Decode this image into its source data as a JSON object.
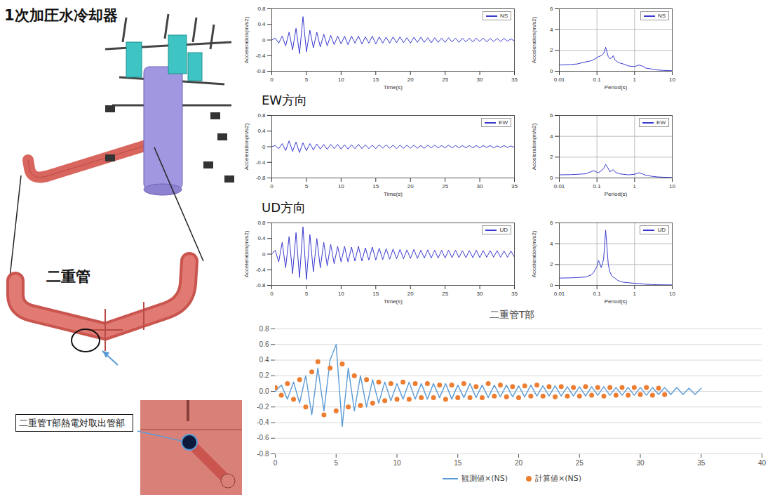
{
  "diagram": {
    "labels": {
      "cooler": "1次加圧水冷却器",
      "pipe": "二重管",
      "callout": "二重管T部熱電対取出管部"
    }
  },
  "chart_data": [
    {
      "type": "line",
      "x_label": "Time(s)",
      "y_label": "Acceleration(m/s2)",
      "legend": "top-right",
      "x": [
        0,
        0.5,
        1,
        1.5,
        2,
        2.5,
        3,
        3.5,
        4,
        4.5,
        5,
        5.5,
        6,
        6.5,
        7,
        7.5,
        8,
        8.5,
        9,
        9.5,
        10,
        10.5,
        11,
        11.5,
        12,
        12.5,
        13,
        13.5,
        14,
        14.5,
        15,
        15.5,
        16,
        16.5,
        17,
        17.5,
        18,
        18.5,
        19,
        19.5,
        20,
        20.5,
        21,
        21.5,
        22,
        22.5,
        23,
        23.5,
        24,
        24.5,
        25,
        25.5,
        26,
        26.5,
        27,
        27.5,
        28,
        28.5,
        29,
        29.5,
        30,
        30.5,
        31,
        31.5,
        32,
        32.5,
        33,
        33.5,
        34,
        34.5,
        35
      ],
      "series": [
        {
          "name": "NS",
          "color": "#3a3ad0",
          "values": [
            0,
            0.05,
            -0.08,
            0.1,
            -0.15,
            0.2,
            -0.25,
            0.3,
            -0.35,
            0.6,
            -0.3,
            0.25,
            -0.2,
            0.2,
            -0.18,
            0.15,
            -0.15,
            0.12,
            -0.12,
            0.1,
            -0.1,
            0.1,
            -0.12,
            0.1,
            -0.08,
            0.1,
            -0.1,
            0.08,
            -0.08,
            0.1,
            -0.1,
            0.08,
            -0.08,
            0.07,
            -0.08,
            0.08,
            -0.07,
            0.08,
            -0.07,
            0.06,
            -0.08,
            0.07,
            -0.06,
            0.07,
            -0.06,
            0.06,
            -0.07,
            0.06,
            -0.06,
            0.05,
            -0.06,
            0.06,
            -0.05,
            0.05,
            -0.06,
            0.05,
            -0.05,
            0.05,
            -0.05,
            0.05,
            -0.04,
            0.05,
            -0.05,
            0.04,
            -0.04,
            0.04,
            -0.04,
            0.04,
            -0.03,
            0.03,
            -0.03
          ]
        }
      ],
      "xlim": [
        0,
        35
      ],
      "xticks": [
        0,
        5,
        10,
        15,
        20,
        25,
        30,
        35
      ],
      "ylim": [
        -0.8,
        0.8
      ],
      "yticks": [
        -0.8,
        -0.4,
        0,
        0.4,
        0.8
      ]
    },
    {
      "type": "line",
      "log": "x",
      "grid": true,
      "x_label": "Period(s)",
      "y_label": "Acceleration(m/s2)",
      "legend": "top-right",
      "x": [
        0.01,
        0.02,
        0.03,
        0.05,
        0.07,
        0.08,
        0.1,
        0.11,
        0.13,
        0.15,
        0.17,
        0.2,
        0.22,
        0.25,
        0.27,
        0.3,
        0.35,
        0.4,
        0.5,
        0.7,
        1,
        1.3,
        1.6,
        2,
        3,
        4,
        6,
        10
      ],
      "series": [
        {
          "name": "NS",
          "color": "#3a3ad0",
          "values": [
            0.6,
            0.65,
            0.7,
            0.9,
            1.0,
            1.1,
            1.3,
            1.4,
            1.5,
            1.7,
            2.3,
            1.4,
            1.2,
            1.3,
            1.5,
            1.1,
            0.9,
            0.8,
            0.7,
            0.5,
            0.45,
            0.6,
            0.5,
            0.3,
            0.2,
            0.12,
            0.08,
            0.05
          ]
        }
      ],
      "xlim": [
        0.01,
        10
      ],
      "xticks": [
        0.01,
        0.1,
        1,
        10
      ],
      "ylim": [
        0,
        6
      ],
      "yticks": [
        0,
        2,
        4,
        6
      ]
    },
    {
      "type": "line",
      "title": "EW方向",
      "x_label": "Time(s)",
      "y_label": "Acceleration(m/s2)",
      "legend": "top-right",
      "x": [
        0,
        0.5,
        1,
        1.5,
        2,
        2.5,
        3,
        3.5,
        4,
        4.5,
        5,
        5.5,
        6,
        6.5,
        7,
        7.5,
        8,
        8.5,
        9,
        9.5,
        10,
        10.5,
        11,
        11.5,
        12,
        12.5,
        13,
        13.5,
        14,
        14.5,
        15,
        15.5,
        16,
        16.5,
        17,
        17.5,
        18,
        18.5,
        19,
        19.5,
        20,
        20.5,
        21,
        21.5,
        22,
        22.5,
        23,
        23.5,
        24,
        24.5,
        25,
        25.5,
        26,
        26.5,
        27,
        27.5,
        28,
        28.5,
        29,
        29.5,
        30,
        30.5,
        31,
        31.5,
        32,
        32.5,
        33,
        33.5,
        34,
        34.5,
        35
      ],
      "series": [
        {
          "name": "EW",
          "color": "#3a3ad0",
          "values": [
            0,
            0.03,
            -0.05,
            0.08,
            -0.1,
            0.15,
            -0.12,
            0.12,
            -0.15,
            0.1,
            -0.1,
            0.08,
            -0.08,
            0.07,
            -0.06,
            0.06,
            -0.07,
            0.06,
            -0.05,
            0.06,
            -0.06,
            0.05,
            -0.06,
            0.05,
            -0.05,
            0.06,
            -0.05,
            0.05,
            -0.05,
            0.04,
            -0.05,
            0.05,
            -0.04,
            0.05,
            -0.04,
            0.04,
            -0.05,
            0.04,
            -0.04,
            0.04,
            -0.04,
            0.04,
            -0.04,
            0.03,
            -0.04,
            0.04,
            -0.03,
            0.04,
            -0.03,
            0.03,
            -0.03,
            0.04,
            -0.03,
            0.03,
            -0.03,
            0.03,
            -0.03,
            0.03,
            -0.03,
            0.03,
            -0.03,
            0.03,
            -0.02,
            0.03,
            -0.03,
            0.02,
            -0.02,
            0.03,
            -0.02,
            0.02,
            -0.02
          ]
        }
      ],
      "xlim": [
        0,
        35
      ],
      "xticks": [
        0,
        5,
        10,
        15,
        20,
        25,
        30,
        35
      ],
      "ylim": [
        -0.8,
        0.8
      ],
      "yticks": [
        -0.8,
        -0.4,
        0,
        0.4,
        0.8
      ]
    },
    {
      "type": "line",
      "log": "x",
      "grid": true,
      "x_label": "Period(s)",
      "y_label": "Acceleration(m/s2)",
      "legend": "top-right",
      "x": [
        0.01,
        0.02,
        0.03,
        0.05,
        0.07,
        0.08,
        0.1,
        0.11,
        0.13,
        0.15,
        0.17,
        0.2,
        0.22,
        0.25,
        0.27,
        0.3,
        0.35,
        0.4,
        0.5,
        0.7,
        1,
        1.3,
        1.6,
        2,
        3,
        4,
        6,
        10
      ],
      "series": [
        {
          "name": "EW",
          "color": "#3a3ad0",
          "values": [
            0.3,
            0.32,
            0.35,
            0.4,
            0.6,
            0.7,
            0.55,
            0.5,
            0.7,
            0.9,
            1.3,
            0.9,
            0.6,
            0.7,
            0.8,
            0.6,
            0.45,
            0.4,
            0.35,
            0.3,
            0.35,
            0.5,
            0.4,
            0.25,
            0.15,
            0.1,
            0.07,
            0.04
          ]
        }
      ],
      "xlim": [
        0.01,
        10
      ],
      "xticks": [
        0.01,
        0.1,
        1,
        10
      ],
      "ylim": [
        0,
        6
      ],
      "yticks": [
        0,
        2,
        4,
        6
      ]
    },
    {
      "type": "line",
      "title": "UD方向",
      "x_label": "Time(s)",
      "y_label": "Acceleration(m/s2)",
      "legend": "top-right",
      "x": [
        0,
        0.5,
        1,
        1.5,
        2,
        2.5,
        3,
        3.5,
        4,
        4.5,
        5,
        5.5,
        6,
        6.5,
        7,
        7.5,
        8,
        8.5,
        9,
        9.5,
        10,
        10.5,
        11,
        11.5,
        12,
        12.5,
        13,
        13.5,
        14,
        14.5,
        15,
        15.5,
        16,
        16.5,
        17,
        17.5,
        18,
        18.5,
        19,
        19.5,
        20,
        20.5,
        21,
        21.5,
        22,
        22.5,
        23,
        23.5,
        24,
        24.5,
        25,
        25.5,
        26,
        26.5,
        27,
        27.5,
        28,
        28.5,
        29,
        29.5,
        30,
        30.5,
        31,
        31.5,
        32,
        32.5,
        33,
        33.5,
        34,
        34.5,
        35
      ],
      "series": [
        {
          "name": "UD",
          "color": "#3a3ad0",
          "values": [
            0,
            0.1,
            -0.2,
            0.3,
            -0.35,
            0.45,
            -0.5,
            0.55,
            -0.6,
            0.7,
            -0.65,
            0.5,
            -0.45,
            0.4,
            -0.35,
            0.3,
            -0.3,
            0.25,
            -0.25,
            0.2,
            -0.2,
            0.2,
            -0.2,
            0.18,
            -0.18,
            0.2,
            -0.18,
            0.16,
            -0.15,
            0.18,
            -0.15,
            0.15,
            -0.14,
            0.14,
            -0.13,
            0.13,
            -0.12,
            0.12,
            -0.12,
            0.11,
            -0.11,
            0.12,
            -0.11,
            0.1,
            -0.1,
            0.11,
            -0.1,
            0.1,
            -0.1,
            0.1,
            -0.1,
            0.1,
            -0.09,
            0.1,
            -0.09,
            0.09,
            -0.09,
            0.09,
            -0.09,
            0.1,
            -0.09,
            0.09,
            -0.08,
            0.09,
            -0.08,
            0.09,
            -0.08,
            0.08,
            -0.08,
            0.08,
            -0.08
          ]
        }
      ],
      "xlim": [
        0,
        35
      ],
      "xticks": [
        0,
        5,
        10,
        15,
        20,
        25,
        30,
        35
      ],
      "ylim": [
        -0.8,
        0.8
      ],
      "yticks": [
        -0.8,
        -0.4,
        0,
        0.4,
        0.8
      ]
    },
    {
      "type": "line",
      "log": "x",
      "grid": true,
      "x_label": "Period(s)",
      "y_label": "Acceleration(m/s2)",
      "legend": "top-right",
      "x": [
        0.01,
        0.02,
        0.03,
        0.05,
        0.07,
        0.08,
        0.1,
        0.11,
        0.13,
        0.15,
        0.17,
        0.2,
        0.22,
        0.25,
        0.27,
        0.3,
        0.35,
        0.4,
        0.5,
        0.7,
        1,
        1.3,
        1.6,
        2,
        3,
        4,
        6,
        10
      ],
      "series": [
        {
          "name": "UD",
          "color": "#3a3ad0",
          "values": [
            0.7,
            0.72,
            0.75,
            0.8,
            1.0,
            1.2,
            1.8,
            2.4,
            1.7,
            2.5,
            5.3,
            2.0,
            1.3,
            0.9,
            0.8,
            0.7,
            0.5,
            0.4,
            0.3,
            0.25,
            0.2,
            0.18,
            0.15,
            0.1,
            0.08,
            0.06,
            0.05,
            0.04
          ]
        }
      ],
      "xlim": [
        0.01,
        10
      ],
      "xticks": [
        0.01,
        0.1,
        1,
        10
      ],
      "ylim": [
        0,
        6
      ],
      "yticks": [
        0,
        2,
        4,
        6
      ]
    },
    {
      "type": "line",
      "title": "二重管T部",
      "grid": true,
      "legend": "bottom",
      "series": [
        {
          "name": "観測値×(NS)",
          "type": "line",
          "color": "#5b9bd5",
          "x": [
            0,
            0.5,
            1,
            1.5,
            2,
            2.5,
            3,
            3.5,
            4,
            4.5,
            5,
            5.5,
            6,
            6.5,
            7,
            7.5,
            8,
            8.5,
            9,
            9.5,
            10,
            10.5,
            11,
            11.5,
            12,
            12.5,
            13,
            13.5,
            14,
            14.5,
            15,
            15.5,
            16,
            16.5,
            17,
            17.5,
            18,
            18.5,
            19,
            19.5,
            20,
            20.5,
            21,
            21.5,
            22,
            22.5,
            23,
            23.5,
            24,
            24.5,
            25,
            25.5,
            26,
            26.5,
            27,
            27.5,
            28,
            28.5,
            29,
            29.5,
            30,
            30.5,
            31,
            31.5,
            32,
            32.5,
            33,
            33.5,
            34,
            34.5,
            35
          ],
          "values": [
            0,
            0.08,
            -0.1,
            0.12,
            -0.15,
            0.2,
            -0.3,
            0.3,
            -0.25,
            0.4,
            0.6,
            -0.45,
            0.3,
            -0.25,
            0.2,
            -0.2,
            0.15,
            -0.15,
            0.12,
            -0.12,
            0.1,
            -0.1,
            0.12,
            -0.1,
            0.1,
            -0.1,
            0.1,
            -0.08,
            0.1,
            -0.1,
            0.08,
            -0.08,
            0.1,
            -0.08,
            0.08,
            -0.08,
            0.08,
            -0.07,
            0.08,
            -0.07,
            0.07,
            -0.07,
            0.08,
            -0.06,
            0.07,
            -0.06,
            0.07,
            -0.06,
            0.06,
            -0.06,
            0.06,
            -0.06,
            0.06,
            -0.05,
            0.06,
            -0.05,
            0.05,
            -0.05,
            0.05,
            -0.05,
            0.05,
            -0.05,
            0.05,
            -0.04,
            0.05,
            -0.04,
            0.05,
            -0.04,
            0.04,
            -0.04,
            0.04
          ]
        },
        {
          "name": "計算値×(NS)",
          "type": "scatter",
          "marker": "circle",
          "color": "#ed7d31",
          "x": [
            0,
            0.5,
            1,
            1.5,
            2,
            2.5,
            3,
            3.5,
            4,
            4.5,
            5,
            5.5,
            6,
            6.5,
            7,
            7.5,
            8,
            8.5,
            9,
            9.5,
            10,
            10.5,
            11,
            11.5,
            12,
            12.5,
            13,
            13.5,
            14,
            14.5,
            15,
            15.5,
            16,
            16.5,
            17,
            17.5,
            18,
            18.5,
            19,
            19.5,
            20,
            20.5,
            21,
            21.5,
            22,
            22.5,
            23,
            23.5,
            24,
            24.5,
            25,
            25.5,
            26,
            26.5,
            27,
            27.5,
            28,
            28.5,
            29,
            29.5,
            30,
            30.5,
            31,
            31.5,
            32
          ],
          "values": [
            0.05,
            -0.05,
            0.1,
            -0.1,
            0.15,
            -0.2,
            0.25,
            0.38,
            -0.3,
            0.3,
            -0.25,
            0.35,
            -0.2,
            0.2,
            -0.18,
            0.15,
            -0.15,
            0.12,
            -0.12,
            0.1,
            -0.1,
            0.12,
            -0.1,
            0.1,
            -0.08,
            0.1,
            -0.08,
            0.08,
            -0.1,
            0.08,
            -0.08,
            0.1,
            -0.08,
            0.06,
            -0.08,
            0.1,
            -0.06,
            0.08,
            -0.07,
            0.06,
            -0.08,
            0.07,
            -0.06,
            0.08,
            -0.06,
            0.06,
            -0.07,
            0.06,
            -0.06,
            0.05,
            -0.06,
            0.06,
            -0.05,
            0.05,
            -0.06,
            0.05,
            -0.05,
            0.05,
            -0.05,
            0.05,
            -0.04,
            0.05,
            -0.05,
            0.04,
            -0.04
          ]
        }
      ],
      "xlim": [
        0,
        40
      ],
      "xticks": [
        0,
        5,
        10,
        15,
        20,
        25,
        30,
        35,
        40
      ],
      "ylim": [
        -0.8,
        0.8
      ],
      "yticks": [
        -0.8,
        -0.6,
        -0.4,
        -0.2,
        {
          "value": 0,
          "label": "0.0"
        },
        0.2,
        0.4,
        0.6,
        0.8
      ]
    }
  ]
}
